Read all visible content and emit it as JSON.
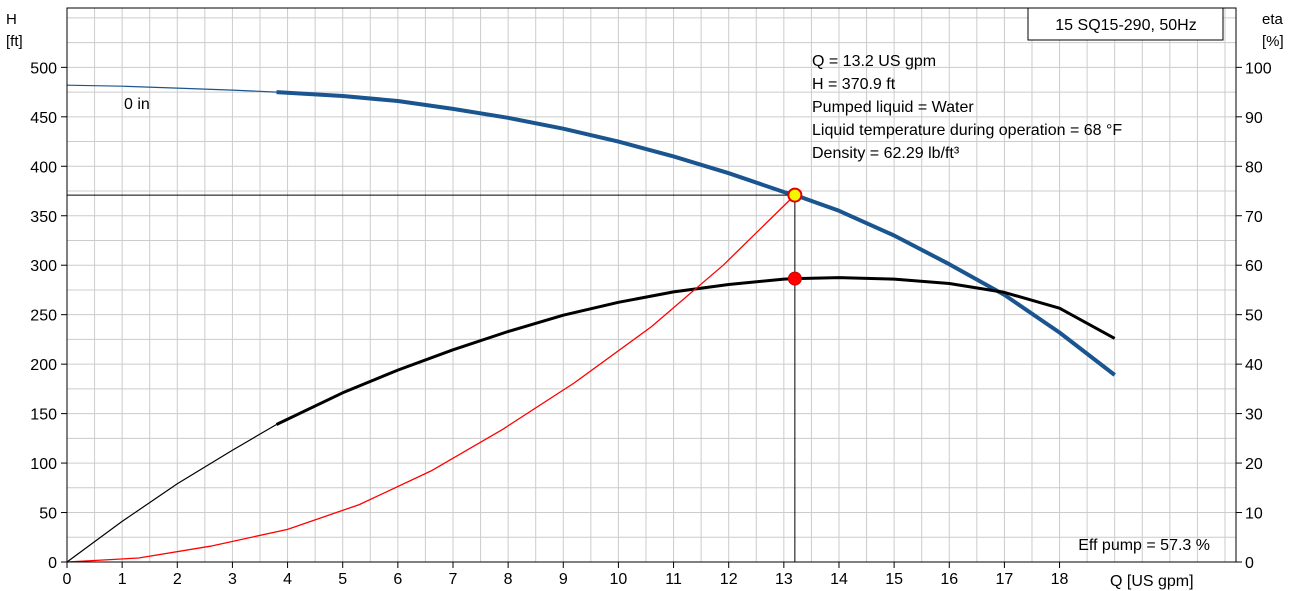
{
  "chart_data": {
    "type": "line",
    "title": "15 SQ15-290, 50Hz",
    "left_axis": {
      "label_line1": "H",
      "label_line2": "[ft]",
      "range": [
        0,
        560
      ],
      "ticks": [
        0,
        50,
        100,
        150,
        200,
        250,
        300,
        350,
        400,
        450,
        500
      ]
    },
    "right_axis": {
      "label_line1": "eta",
      "label_line2": "[%]",
      "range": [
        0,
        112
      ],
      "ticks": [
        0,
        10,
        20,
        30,
        40,
        50,
        60,
        70,
        80,
        90,
        100
      ]
    },
    "x_axis": {
      "label": "Q [US gpm]",
      "range": [
        0,
        21.2
      ],
      "ticks": [
        0,
        1,
        2,
        3,
        4,
        5,
        6,
        7,
        8,
        9,
        10,
        11,
        12,
        13,
        14,
        15,
        16,
        17,
        18
      ]
    },
    "grid": true,
    "info_lines": [
      "Q = 13.2 US gpm",
      "H = 370.9 ft",
      "Pumped liquid = Water",
      "Liquid temperature during operation = 68 °F",
      "Density = 62.29 lb/ft³"
    ],
    "curve_label": "0 in",
    "efficiency_text": "Eff pump = 57.3 %",
    "operating_point": {
      "q": 13.2,
      "h": 370.9,
      "eff": 57.3
    },
    "series": [
      {
        "id": "head",
        "axis": "left",
        "color": "#1a5590",
        "x": [
          0,
          1,
          2,
          3,
          3.8,
          5,
          6,
          7,
          8,
          9,
          10,
          11,
          12,
          13,
          13.2,
          14,
          15,
          16,
          17,
          18,
          19.0
        ],
        "y": [
          482,
          481,
          479,
          477,
          475,
          471,
          466,
          458,
          449,
          438,
          425,
          410,
          393,
          374,
          371,
          355,
          330,
          301,
          270,
          232,
          189
        ],
        "thin_until": 3.8
      },
      {
        "id": "efficiency",
        "axis": "right",
        "color": "#000000",
        "x": [
          0,
          1,
          2,
          3,
          3.8,
          5,
          6,
          7,
          8,
          9,
          10,
          11,
          12,
          13,
          13.2,
          14,
          15,
          16,
          17,
          18,
          19.0
        ],
        "y": [
          0,
          8.2,
          15.8,
          22.6,
          27.8,
          34.2,
          38.8,
          42.9,
          46.6,
          49.9,
          52.5,
          54.6,
          56.1,
          57.2,
          57.3,
          57.5,
          57.2,
          56.3,
          54.5,
          51.3,
          45.2
        ],
        "thin_until": 3.8
      },
      {
        "id": "power",
        "axis": "left",
        "color": "#ff0000",
        "x": [
          0,
          1.3,
          2.6,
          4,
          5.3,
          6.6,
          7.9,
          9.2,
          10.6,
          11.9,
          13.2
        ],
        "y": [
          0,
          4,
          16,
          33,
          58,
          92,
          134,
          181,
          238,
          300,
          371
        ]
      }
    ]
  }
}
